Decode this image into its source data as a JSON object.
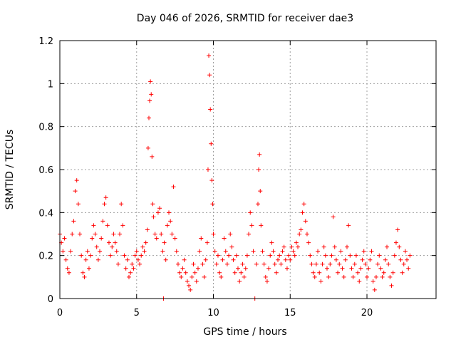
{
  "chart_data": {
    "type": "scatter",
    "title": "Day 046 of 2026, SRMTID for receiver dae3",
    "xlabel": "GPS time / hours",
    "ylabel": "SRMTID / TECUs",
    "xlim": [
      0,
      24.5
    ],
    "ylim": [
      0,
      1.2
    ],
    "x_ticks": [
      0,
      5,
      10,
      15,
      20
    ],
    "x_tick_labels": [
      "0",
      "5",
      "10",
      "15",
      "20"
    ],
    "y_ticks": [
      0,
      0.2,
      0.4,
      0.6,
      0.8,
      1.0,
      1.2
    ],
    "y_tick_labels": [
      "0",
      "0.2",
      "0.4",
      "0.6",
      "0.8",
      "1",
      "1.2"
    ],
    "grid": true,
    "marker": "+",
    "marker_color": "#ff0000",
    "series": [
      {
        "name": "SRMTID",
        "points": [
          [
            0.0,
            0.3
          ],
          [
            0.1,
            0.26
          ],
          [
            0.2,
            0.22
          ],
          [
            0.3,
            0.28
          ],
          [
            0.4,
            0.18
          ],
          [
            0.5,
            0.14
          ],
          [
            0.6,
            0.12
          ],
          [
            0.7,
            0.22
          ],
          [
            0.8,
            0.3
          ],
          [
            0.9,
            0.36
          ],
          [
            1.0,
            0.5
          ],
          [
            1.1,
            0.55
          ],
          [
            1.2,
            0.44
          ],
          [
            1.3,
            0.3
          ],
          [
            1.4,
            0.2
          ],
          [
            1.5,
            0.12
          ],
          [
            1.6,
            0.1
          ],
          [
            1.7,
            0.18
          ],
          [
            1.8,
            0.22
          ],
          [
            1.9,
            0.14
          ],
          [
            2.0,
            0.2
          ],
          [
            2.1,
            0.28
          ],
          [
            2.2,
            0.34
          ],
          [
            2.3,
            0.3
          ],
          [
            2.4,
            0.24
          ],
          [
            2.5,
            0.18
          ],
          [
            2.6,
            0.22
          ],
          [
            2.7,
            0.28
          ],
          [
            2.8,
            0.36
          ],
          [
            2.9,
            0.44
          ],
          [
            3.0,
            0.47
          ],
          [
            3.1,
            0.34
          ],
          [
            3.2,
            0.26
          ],
          [
            3.3,
            0.2
          ],
          [
            3.4,
            0.24
          ],
          [
            3.5,
            0.3
          ],
          [
            3.6,
            0.26
          ],
          [
            3.7,
            0.22
          ],
          [
            3.8,
            0.16
          ],
          [
            3.9,
            0.3
          ],
          [
            4.0,
            0.44
          ],
          [
            4.1,
            0.34
          ],
          [
            4.2,
            0.2
          ],
          [
            4.3,
            0.14
          ],
          [
            4.4,
            0.18
          ],
          [
            4.5,
            0.1
          ],
          [
            4.6,
            0.12
          ],
          [
            4.7,
            0.16
          ],
          [
            4.8,
            0.14
          ],
          [
            4.9,
            0.2
          ],
          [
            5.0,
            0.22
          ],
          [
            5.1,
            0.18
          ],
          [
            5.2,
            0.16
          ],
          [
            5.3,
            0.2
          ],
          [
            5.4,
            0.24
          ],
          [
            5.5,
            0.22
          ],
          [
            5.6,
            0.26
          ],
          [
            5.7,
            0.32
          ],
          [
            5.75,
            0.7
          ],
          [
            5.8,
            0.84
          ],
          [
            5.85,
            0.92
          ],
          [
            5.9,
            1.01
          ],
          [
            5.95,
            0.95
          ],
          [
            6.0,
            0.66
          ],
          [
            6.05,
            0.44
          ],
          [
            6.1,
            0.38
          ],
          [
            6.2,
            0.3
          ],
          [
            6.3,
            0.28
          ],
          [
            6.4,
            0.4
          ],
          [
            6.5,
            0.42
          ],
          [
            6.6,
            0.3
          ],
          [
            6.7,
            0.22
          ],
          [
            6.75,
            0.0
          ],
          [
            6.8,
            0.26
          ],
          [
            6.9,
            0.18
          ],
          [
            7.0,
            0.34
          ],
          [
            7.1,
            0.4
          ],
          [
            7.2,
            0.36
          ],
          [
            7.3,
            0.3
          ],
          [
            7.4,
            0.52
          ],
          [
            7.5,
            0.28
          ],
          [
            7.6,
            0.22
          ],
          [
            7.7,
            0.16
          ],
          [
            7.8,
            0.12
          ],
          [
            7.9,
            0.1
          ],
          [
            8.0,
            0.14
          ],
          [
            8.1,
            0.18
          ],
          [
            8.2,
            0.12
          ],
          [
            8.3,
            0.08
          ],
          [
            8.4,
            0.06
          ],
          [
            8.5,
            0.04
          ],
          [
            8.6,
            0.1
          ],
          [
            8.7,
            0.16
          ],
          [
            8.8,
            0.12
          ],
          [
            8.9,
            0.08
          ],
          [
            9.0,
            0.14
          ],
          [
            9.1,
            0.22
          ],
          [
            9.2,
            0.28
          ],
          [
            9.3,
            0.16
          ],
          [
            9.4,
            0.1
          ],
          [
            9.5,
            0.18
          ],
          [
            9.6,
            0.26
          ],
          [
            9.65,
            0.6
          ],
          [
            9.7,
            1.13
          ],
          [
            9.75,
            1.04
          ],
          [
            9.8,
            0.88
          ],
          [
            9.85,
            0.72
          ],
          [
            9.9,
            0.55
          ],
          [
            9.95,
            0.44
          ],
          [
            10.0,
            0.3
          ],
          [
            10.1,
            0.22
          ],
          [
            10.2,
            0.16
          ],
          [
            10.3,
            0.2
          ],
          [
            10.4,
            0.12
          ],
          [
            10.5,
            0.1
          ],
          [
            10.6,
            0.18
          ],
          [
            10.7,
            0.28
          ],
          [
            10.8,
            0.22
          ],
          [
            10.9,
            0.16
          ],
          [
            11.0,
            0.2
          ],
          [
            11.1,
            0.3
          ],
          [
            11.2,
            0.24
          ],
          [
            11.3,
            0.18
          ],
          [
            11.4,
            0.12
          ],
          [
            11.5,
            0.2
          ],
          [
            11.6,
            0.14
          ],
          [
            11.7,
            0.08
          ],
          [
            11.8,
            0.12
          ],
          [
            11.9,
            0.16
          ],
          [
            12.0,
            0.1
          ],
          [
            12.1,
            0.14
          ],
          [
            12.2,
            0.2
          ],
          [
            12.3,
            0.3
          ],
          [
            12.4,
            0.4
          ],
          [
            12.5,
            0.34
          ],
          [
            12.6,
            0.22
          ],
          [
            12.7,
            0.0
          ],
          [
            12.8,
            0.16
          ],
          [
            12.9,
            0.44
          ],
          [
            12.95,
            0.6
          ],
          [
            13.0,
            0.67
          ],
          [
            13.05,
            0.5
          ],
          [
            13.1,
            0.34
          ],
          [
            13.2,
            0.22
          ],
          [
            13.3,
            0.16
          ],
          [
            13.4,
            0.1
          ],
          [
            13.5,
            0.08
          ],
          [
            13.6,
            0.14
          ],
          [
            13.7,
            0.2
          ],
          [
            13.8,
            0.26
          ],
          [
            13.9,
            0.22
          ],
          [
            14.0,
            0.16
          ],
          [
            14.1,
            0.12
          ],
          [
            14.2,
            0.18
          ],
          [
            14.3,
            0.2
          ],
          [
            14.4,
            0.16
          ],
          [
            14.5,
            0.22
          ],
          [
            14.6,
            0.24
          ],
          [
            14.7,
            0.18
          ],
          [
            14.8,
            0.14
          ],
          [
            14.9,
            0.2
          ],
          [
            15.0,
            0.18
          ],
          [
            15.1,
            0.24
          ],
          [
            15.2,
            0.22
          ],
          [
            15.3,
            0.2
          ],
          [
            15.4,
            0.26
          ],
          [
            15.5,
            0.24
          ],
          [
            15.6,
            0.3
          ],
          [
            15.7,
            0.32
          ],
          [
            15.8,
            0.4
          ],
          [
            15.9,
            0.44
          ],
          [
            16.0,
            0.36
          ],
          [
            16.1,
            0.3
          ],
          [
            16.2,
            0.26
          ],
          [
            16.3,
            0.2
          ],
          [
            16.4,
            0.16
          ],
          [
            16.5,
            0.12
          ],
          [
            16.6,
            0.1
          ],
          [
            16.7,
            0.16
          ],
          [
            16.8,
            0.22
          ],
          [
            16.9,
            0.12
          ],
          [
            17.0,
            0.08
          ],
          [
            17.1,
            0.16
          ],
          [
            17.2,
            0.24
          ],
          [
            17.3,
            0.2
          ],
          [
            17.4,
            0.14
          ],
          [
            17.5,
            0.1
          ],
          [
            17.6,
            0.16
          ],
          [
            17.7,
            0.2
          ],
          [
            17.8,
            0.38
          ],
          [
            17.9,
            0.24
          ],
          [
            18.0,
            0.18
          ],
          [
            18.1,
            0.12
          ],
          [
            18.2,
            0.16
          ],
          [
            18.3,
            0.22
          ],
          [
            18.4,
            0.14
          ],
          [
            18.5,
            0.1
          ],
          [
            18.6,
            0.18
          ],
          [
            18.7,
            0.24
          ],
          [
            18.8,
            0.34
          ],
          [
            18.9,
            0.2
          ],
          [
            19.0,
            0.14
          ],
          [
            19.1,
            0.1
          ],
          [
            19.2,
            0.16
          ],
          [
            19.3,
            0.2
          ],
          [
            19.4,
            0.12
          ],
          [
            19.5,
            0.08
          ],
          [
            19.6,
            0.14
          ],
          [
            19.7,
            0.18
          ],
          [
            19.8,
            0.22
          ],
          [
            19.9,
            0.16
          ],
          [
            20.0,
            0.1
          ],
          [
            20.1,
            0.14
          ],
          [
            20.2,
            0.18
          ],
          [
            20.3,
            0.22
          ],
          [
            20.4,
            0.08
          ],
          [
            20.5,
            0.04
          ],
          [
            20.6,
            0.1
          ],
          [
            20.7,
            0.16
          ],
          [
            20.8,
            0.2
          ],
          [
            20.9,
            0.14
          ],
          [
            21.0,
            0.1
          ],
          [
            21.1,
            0.12
          ],
          [
            21.2,
            0.18
          ],
          [
            21.3,
            0.24
          ],
          [
            21.4,
            0.16
          ],
          [
            21.5,
            0.1
          ],
          [
            21.6,
            0.06
          ],
          [
            21.7,
            0.12
          ],
          [
            21.8,
            0.2
          ],
          [
            21.9,
            0.26
          ],
          [
            22.0,
            0.32
          ],
          [
            22.1,
            0.24
          ],
          [
            22.2,
            0.18
          ],
          [
            22.3,
            0.12
          ],
          [
            22.4,
            0.16
          ],
          [
            22.5,
            0.22
          ],
          [
            22.6,
            0.18
          ],
          [
            22.7,
            0.14
          ],
          [
            22.8,
            0.2
          ]
        ]
      }
    ]
  }
}
